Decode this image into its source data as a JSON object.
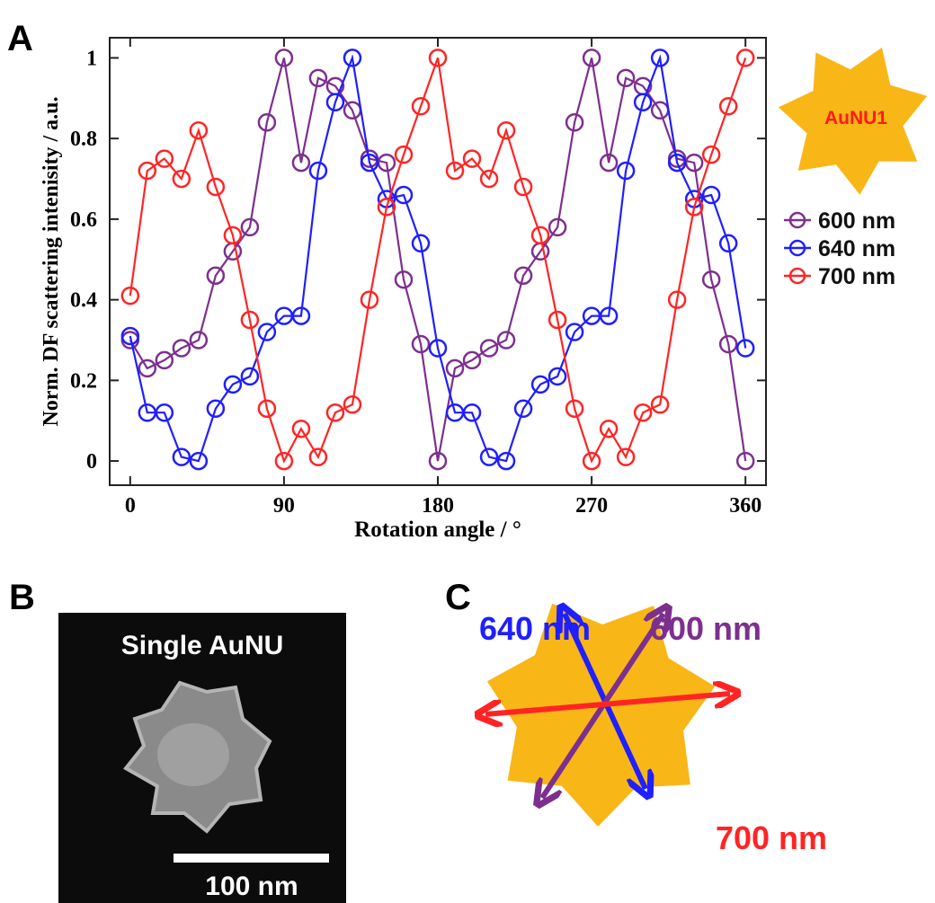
{
  "panel_labels": [
    "A",
    "B",
    "C"
  ],
  "chart_data": {
    "type": "line",
    "x_label": "Rotation angle / °",
    "y_label": "Norm. DF scattering intenisity / a.u.",
    "x": [
      0,
      10,
      20,
      30,
      40,
      50,
      60,
      70,
      80,
      90,
      100,
      110,
      120,
      130,
      140,
      150,
      160,
      170,
      180,
      190,
      200,
      210,
      220,
      230,
      240,
      250,
      260,
      270,
      280,
      290,
      300,
      310,
      320,
      330,
      340,
      350,
      360
    ],
    "series": [
      {
        "name": "600 nm",
        "color": "#7d2f8f",
        "values": [
          0.3,
          0.23,
          0.25,
          0.28,
          0.3,
          0.46,
          0.52,
          0.58,
          0.84,
          1.0,
          0.74,
          0.95,
          0.93,
          0.87,
          0.75,
          0.74,
          0.45,
          0.29,
          0.0,
          0.23,
          0.25,
          0.28,
          0.3,
          0.46,
          0.52,
          0.58,
          0.84,
          1.0,
          0.74,
          0.95,
          0.93,
          0.87,
          0.75,
          0.74,
          0.45,
          0.29,
          0.0
        ]
      },
      {
        "name": "640 nm",
        "color": "#1f1fff",
        "values": [
          0.31,
          0.12,
          0.12,
          0.01,
          0.0,
          0.13,
          0.19,
          0.21,
          0.32,
          0.36,
          0.36,
          0.72,
          0.89,
          1.0,
          0.74,
          0.65,
          0.66,
          0.54,
          0.28,
          0.12,
          0.12,
          0.01,
          0.0,
          0.13,
          0.19,
          0.21,
          0.32,
          0.36,
          0.36,
          0.72,
          0.89,
          1.0,
          0.74,
          0.65,
          0.66,
          0.54,
          0.28
        ]
      },
      {
        "name": "700 nm",
        "color": "#ff2424",
        "values": [
          0.41,
          0.72,
          0.75,
          0.7,
          0.82,
          0.68,
          0.56,
          0.35,
          0.13,
          0.0,
          0.08,
          0.01,
          0.12,
          0.14,
          0.4,
          0.63,
          0.76,
          0.88,
          1.0,
          0.72,
          0.75,
          0.7,
          0.82,
          0.68,
          0.56,
          0.35,
          0.13,
          0.0,
          0.08,
          0.01,
          0.12,
          0.14,
          0.4,
          0.63,
          0.76,
          0.88,
          1.0
        ]
      }
    ],
    "xlim": [
      -12,
      372
    ],
    "xticks": [
      0,
      90,
      180,
      270,
      360
    ],
    "ylim": [
      -0.06,
      1.05
    ],
    "yticks": [
      0,
      0.2,
      0.4,
      0.6,
      0.8,
      1
    ],
    "legend": "right",
    "markers": "open-circle"
  },
  "badge": "AuNU1",
  "sem_image": {
    "title": "Single AuNU",
    "scale_bar": "100 nm"
  },
  "diagram": {
    "labels": [
      "640 nm",
      "600 nm",
      "700 nm"
    ]
  }
}
